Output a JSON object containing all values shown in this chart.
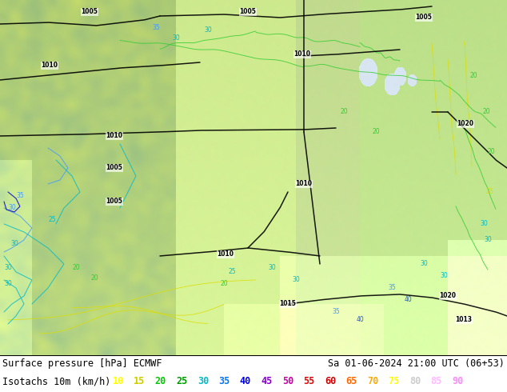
{
  "title_left": "Surface pressure [hPa] ECMWF",
  "title_right": "Sa 01-06-2024 21:00 UTC (06+53)",
  "legend_label": "Isotachs 10m (km/h)",
  "legend_values": [
    10,
    15,
    20,
    25,
    30,
    35,
    40,
    45,
    50,
    55,
    60,
    65,
    70,
    75,
    80,
    85,
    90
  ],
  "legend_colors": [
    "#ffff00",
    "#cccc00",
    "#00cc00",
    "#009900",
    "#00bbcc",
    "#0077ff",
    "#0000ee",
    "#8800cc",
    "#cc00aa",
    "#ee0000",
    "#cc0000",
    "#ff6600",
    "#ffaa00",
    "#ffff00",
    "#cccccc",
    "#ffbbff",
    "#ff88ff"
  ],
  "bg_color": "#ffffff",
  "font_size_title": 8.5,
  "font_size_legend": 8.5,
  "fig_width": 6.34,
  "fig_height": 4.9,
  "dpi": 100
}
